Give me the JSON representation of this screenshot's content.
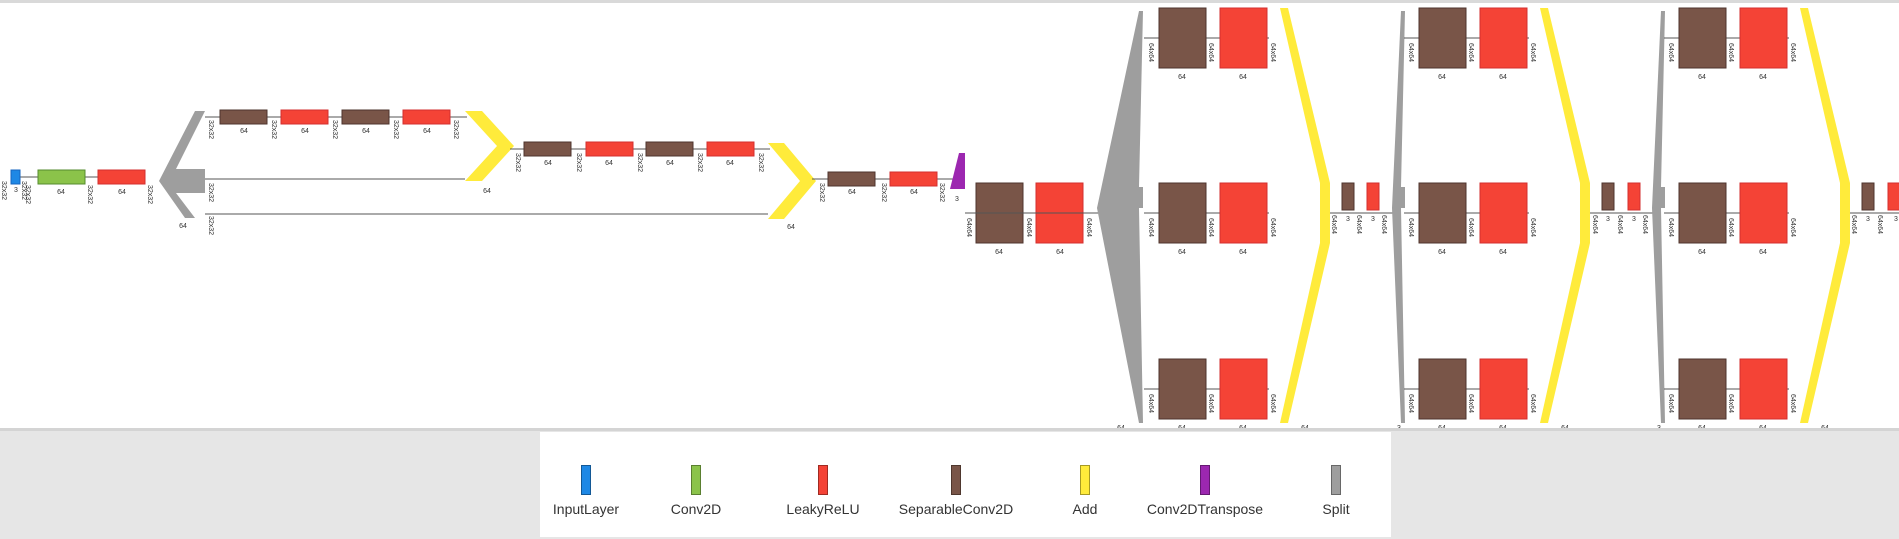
{
  "colors": {
    "InputLayer": "#1e88e5",
    "Conv2D": "#8bc34a",
    "LeakyReLU": "#f44336",
    "SeparableConv2D": "#795548",
    "Add": "#ffeb3b",
    "Conv2DTranspose": "#9c27b0",
    "Split": "#9e9e9e"
  },
  "legend": [
    {
      "name": "InputLayer",
      "color": "#1e88e5"
    },
    {
      "name": "Conv2D",
      "color": "#8bc34a"
    },
    {
      "name": "LeakyReLU",
      "color": "#f44336"
    },
    {
      "name": "SeparableConv2D",
      "color": "#795548"
    },
    {
      "name": "Add",
      "color": "#ffeb3b"
    },
    {
      "name": "Conv2DTranspose",
      "color": "#9c27b0"
    },
    {
      "name": "Split",
      "color": "#9e9e9e"
    }
  ],
  "labels": {
    "shape32": "32x32",
    "shape64": "64x64",
    "ch64": "64",
    "ch3": "3",
    "ch1": "3"
  }
}
